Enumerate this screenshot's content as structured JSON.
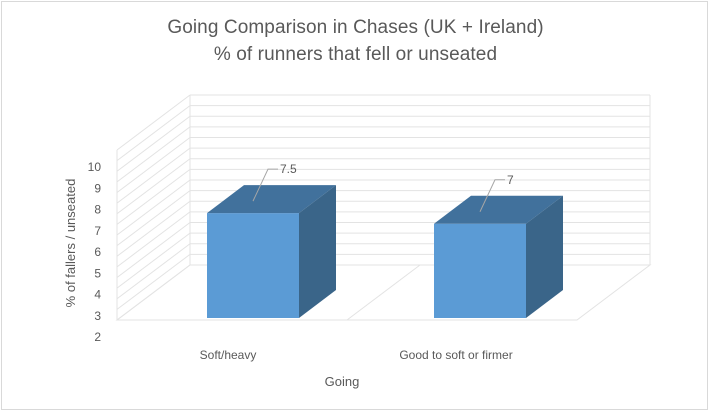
{
  "chart_data": {
    "type": "bar",
    "style": "3d-column",
    "title": "Going Comparison in Chases (UK + Ireland)",
    "subtitle": "% of runners that fell or unseated",
    "xlabel": "Going",
    "ylabel": "% of fallers / unseated",
    "categories": [
      "Soft/heavy",
      "Good to soft or firmer"
    ],
    "values": [
      7.5,
      7
    ],
    "data_labels": [
      "7.5",
      "7"
    ],
    "ylim": [
      2,
      10
    ],
    "yticks": [
      "2",
      "3",
      "4",
      "5",
      "6",
      "7",
      "8",
      "9",
      "10"
    ],
    "grid": true,
    "legend": "none",
    "colors": {
      "bar_front": "#5b9bd5",
      "bar_top": "#41719c",
      "bar_side": "#3a6589",
      "grid": "#e3e3e3",
      "text": "#595959",
      "border": "#d9d9d9"
    }
  }
}
